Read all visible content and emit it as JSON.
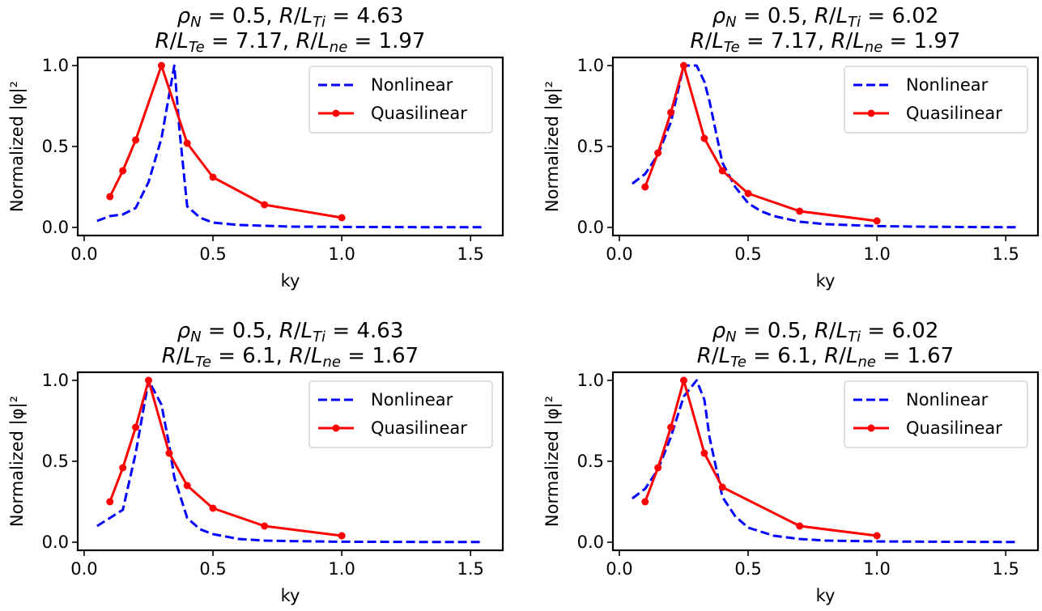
{
  "chart_data": [
    {
      "type": "line",
      "title_segments": [
        [
          {
            "t": "ρ",
            "i": true
          },
          {
            "t": "N",
            "sub": true,
            "i": true
          },
          {
            "t": " = 0.5, "
          },
          {
            "t": "R",
            "i": true
          },
          {
            "t": "/"
          },
          {
            "t": "L",
            "i": true
          },
          {
            "t": "Ti",
            "sub": true,
            "i": true
          },
          {
            "t": " = 4.63"
          }
        ],
        [
          {
            "t": "R",
            "i": true
          },
          {
            "t": "/"
          },
          {
            "t": "L",
            "i": true
          },
          {
            "t": "Te",
            "sub": true,
            "i": true
          },
          {
            "t": " = 7.17, "
          },
          {
            "t": "R",
            "i": true
          },
          {
            "t": "/"
          },
          {
            "t": "L",
            "i": true
          },
          {
            "t": "ne",
            "sub": true,
            "i": true
          },
          {
            "t": " = 1.97"
          }
        ]
      ],
      "xlabel": "ky",
      "ylabel": "Normalized |φ|²",
      "xlim": [
        -0.025,
        1.625
      ],
      "ylim": [
        -0.05,
        1.05
      ],
      "xticks": [
        "0.0",
        "0.5",
        "1.0",
        "1.5"
      ],
      "yticks": [
        "0.0",
        "0.5",
        "1.0"
      ],
      "legend_position": "top-right",
      "series": [
        {
          "name": "Nonlinear",
          "color": "#0000ff",
          "style": "dashed",
          "x": [
            0.05,
            0.1,
            0.15,
            0.2,
            0.25,
            0.3,
            0.35,
            0.37,
            0.4,
            0.45,
            0.5,
            0.6,
            0.7,
            0.8,
            1.0,
            1.2,
            1.4,
            1.55
          ],
          "y": [
            0.04,
            0.07,
            0.08,
            0.12,
            0.28,
            0.55,
            1.0,
            0.6,
            0.13,
            0.06,
            0.03,
            0.015,
            0.01,
            0.005,
            0.003,
            0.002,
            0.001,
            0.001
          ]
        },
        {
          "name": "Quasilinear",
          "color": "#ff0000",
          "style": "solid-markers",
          "x": [
            0.1,
            0.15,
            0.2,
            0.3,
            0.4,
            0.5,
            0.7,
            1.0
          ],
          "y": [
            0.19,
            0.35,
            0.54,
            1.0,
            0.52,
            0.31,
            0.14,
            0.06
          ]
        }
      ]
    },
    {
      "type": "line",
      "title_segments": [
        [
          {
            "t": "ρ",
            "i": true
          },
          {
            "t": "N",
            "sub": true,
            "i": true
          },
          {
            "t": " = 0.5, "
          },
          {
            "t": "R",
            "i": true
          },
          {
            "t": "/"
          },
          {
            "t": "L",
            "i": true
          },
          {
            "t": "Ti",
            "sub": true,
            "i": true
          },
          {
            "t": " = 6.02"
          }
        ],
        [
          {
            "t": "R",
            "i": true
          },
          {
            "t": "/"
          },
          {
            "t": "L",
            "i": true
          },
          {
            "t": "Te",
            "sub": true,
            "i": true
          },
          {
            "t": " = 7.17, "
          },
          {
            "t": "R",
            "i": true
          },
          {
            "t": "/"
          },
          {
            "t": "L",
            "i": true
          },
          {
            "t": "ne",
            "sub": true,
            "i": true
          },
          {
            "t": " = 1.97"
          }
        ]
      ],
      "xlabel": "ky",
      "ylabel": "Normalized |φ|²",
      "xlim": [
        -0.025,
        1.625
      ],
      "ylim": [
        -0.05,
        1.05
      ],
      "xticks": [
        "0.0",
        "0.5",
        "1.0",
        "1.5"
      ],
      "yticks": [
        "0.0",
        "0.5",
        "1.0"
      ],
      "legend_position": "top-right",
      "series": [
        {
          "name": "Nonlinear",
          "color": "#0000ff",
          "style": "dashed",
          "x": [
            0.05,
            0.1,
            0.15,
            0.2,
            0.25,
            0.3,
            0.33,
            0.35,
            0.4,
            0.45,
            0.5,
            0.55,
            0.6,
            0.7,
            0.8,
            1.0,
            1.2,
            1.4,
            1.55
          ],
          "y": [
            0.27,
            0.33,
            0.45,
            0.65,
            1.0,
            1.0,
            0.9,
            0.78,
            0.4,
            0.25,
            0.15,
            0.1,
            0.07,
            0.035,
            0.02,
            0.008,
            0.004,
            0.002,
            0.001
          ]
        },
        {
          "name": "Quasilinear",
          "color": "#ff0000",
          "style": "solid-markers",
          "x": [
            0.1,
            0.15,
            0.2,
            0.25,
            0.33,
            0.4,
            0.5,
            0.7,
            1.0
          ],
          "y": [
            0.25,
            0.46,
            0.71,
            1.0,
            0.55,
            0.35,
            0.21,
            0.1,
            0.04
          ]
        }
      ]
    },
    {
      "type": "line",
      "title_segments": [
        [
          {
            "t": "ρ",
            "i": true
          },
          {
            "t": "N",
            "sub": true,
            "i": true
          },
          {
            "t": " = 0.5, "
          },
          {
            "t": "R",
            "i": true
          },
          {
            "t": "/"
          },
          {
            "t": "L",
            "i": true
          },
          {
            "t": "Ti",
            "sub": true,
            "i": true
          },
          {
            "t": " = 4.63"
          }
        ],
        [
          {
            "t": "R",
            "i": true
          },
          {
            "t": "/"
          },
          {
            "t": "L",
            "i": true
          },
          {
            "t": "Te",
            "sub": true,
            "i": true
          },
          {
            "t": " = 6.1, "
          },
          {
            "t": "R",
            "i": true
          },
          {
            "t": "/"
          },
          {
            "t": "L",
            "i": true
          },
          {
            "t": "ne",
            "sub": true,
            "i": true
          },
          {
            "t": " = 1.67"
          }
        ]
      ],
      "xlabel": "ky",
      "ylabel": "Normalized |φ|²",
      "xlim": [
        -0.025,
        1.625
      ],
      "ylim": [
        -0.05,
        1.05
      ],
      "xticks": [
        "0.0",
        "0.5",
        "1.0",
        "1.5"
      ],
      "yticks": [
        "0.0",
        "0.5",
        "1.0"
      ],
      "legend_position": "top-right",
      "series": [
        {
          "name": "Nonlinear",
          "color": "#0000ff",
          "style": "dashed",
          "x": [
            0.05,
            0.1,
            0.15,
            0.2,
            0.25,
            0.3,
            0.33,
            0.35,
            0.4,
            0.45,
            0.5,
            0.6,
            0.7,
            0.8,
            1.0,
            1.2,
            1.4,
            1.55
          ],
          "y": [
            0.1,
            0.15,
            0.2,
            0.55,
            1.0,
            0.85,
            0.6,
            0.4,
            0.15,
            0.08,
            0.05,
            0.02,
            0.01,
            0.007,
            0.003,
            0.002,
            0.001,
            0.001
          ]
        },
        {
          "name": "Quasilinear",
          "color": "#ff0000",
          "style": "solid-markers",
          "x": [
            0.1,
            0.15,
            0.2,
            0.25,
            0.33,
            0.4,
            0.5,
            0.7,
            1.0
          ],
          "y": [
            0.25,
            0.46,
            0.71,
            1.0,
            0.55,
            0.35,
            0.21,
            0.1,
            0.04
          ]
        }
      ]
    },
    {
      "type": "line",
      "title_segments": [
        [
          {
            "t": "ρ",
            "i": true
          },
          {
            "t": "N",
            "sub": true,
            "i": true
          },
          {
            "t": " = 0.5, "
          },
          {
            "t": "R",
            "i": true
          },
          {
            "t": "/"
          },
          {
            "t": "L",
            "i": true
          },
          {
            "t": "Ti",
            "sub": true,
            "i": true
          },
          {
            "t": " = 6.02"
          }
        ],
        [
          {
            "t": "R",
            "i": true
          },
          {
            "t": "/"
          },
          {
            "t": "L",
            "i": true
          },
          {
            "t": "Te",
            "sub": true,
            "i": true
          },
          {
            "t": " = 6.1, "
          },
          {
            "t": "R",
            "i": true
          },
          {
            "t": "/"
          },
          {
            "t": "L",
            "i": true
          },
          {
            "t": "ne",
            "sub": true,
            "i": true
          },
          {
            "t": " = 1.67"
          }
        ]
      ],
      "xlabel": "ky",
      "ylabel": "Normalized |φ|²",
      "xlim": [
        -0.025,
        1.625
      ],
      "ylim": [
        -0.05,
        1.05
      ],
      "xticks": [
        "0.0",
        "0.5",
        "1.0",
        "1.5"
      ],
      "yticks": [
        "0.0",
        "0.5",
        "1.0"
      ],
      "legend_position": "top-right",
      "series": [
        {
          "name": "Nonlinear",
          "color": "#0000ff",
          "style": "dashed",
          "x": [
            0.05,
            0.1,
            0.15,
            0.2,
            0.25,
            0.3,
            0.33,
            0.35,
            0.4,
            0.45,
            0.5,
            0.6,
            0.7,
            0.8,
            1.0,
            1.2,
            1.4,
            1.55
          ],
          "y": [
            0.27,
            0.33,
            0.45,
            0.65,
            0.9,
            1.0,
            0.88,
            0.65,
            0.28,
            0.16,
            0.09,
            0.04,
            0.02,
            0.01,
            0.005,
            0.003,
            0.002,
            0.001
          ]
        },
        {
          "name": "Quasilinear",
          "color": "#ff0000",
          "style": "solid-markers",
          "x": [
            0.1,
            0.15,
            0.2,
            0.25,
            0.33,
            0.4,
            0.7,
            1.0
          ],
          "y": [
            0.25,
            0.46,
            0.71,
            1.0,
            0.55,
            0.34,
            0.1,
            0.04
          ]
        }
      ]
    }
  ]
}
